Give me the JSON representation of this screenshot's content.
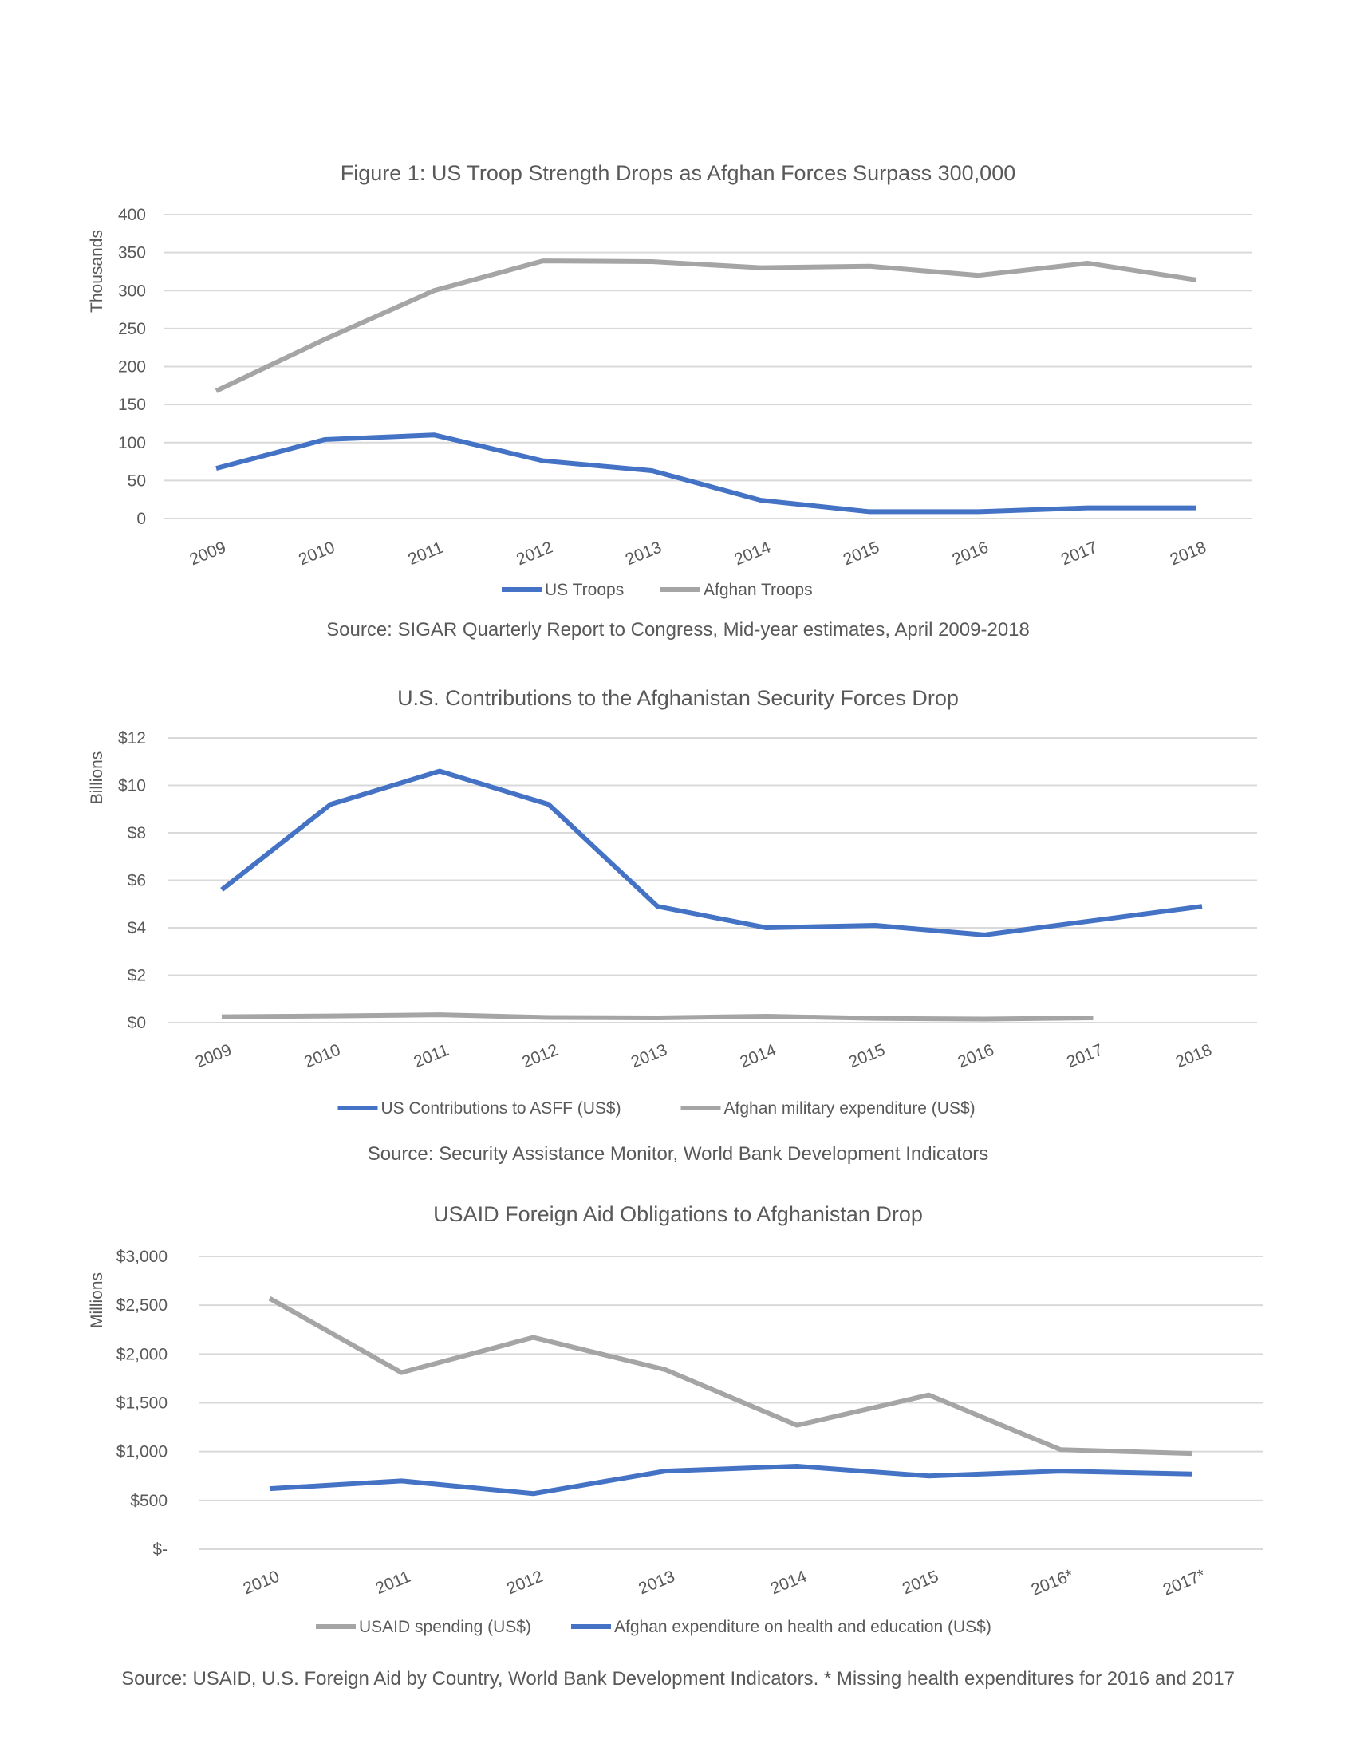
{
  "colors": {
    "blue": "#4472C4",
    "gray": "#A5A5A5",
    "grid": "#D9D9D9"
  },
  "chart_data": [
    {
      "type": "line",
      "title": "Figure 1: US Troop Strength Drops as Afghan Forces Surpass 300,000",
      "ylabel": "Thousands",
      "ylim": [
        0,
        400
      ],
      "yticks": [
        0,
        50,
        100,
        150,
        200,
        250,
        300,
        350,
        400
      ],
      "ytick_labels": [
        "0",
        "50",
        "100",
        "150",
        "200",
        "250",
        "300",
        "350",
        "400"
      ],
      "categories": [
        "2009",
        "2010",
        "2011",
        "2012",
        "2013",
        "2014",
        "2015",
        "2016",
        "2017",
        "2018"
      ],
      "grid": true,
      "legend_placement": "bottom",
      "series": [
        {
          "name": "US Troops",
          "color": "#4472C4",
          "values": [
            66,
            104,
            110,
            76,
            63,
            24,
            9,
            9,
            14,
            14
          ]
        },
        {
          "name": "Afghan Troops",
          "color": "#A5A5A5",
          "values": [
            168,
            236,
            300,
            339,
            338,
            330,
            332,
            320,
            336,
            314
          ]
        }
      ],
      "source": "Source: SIGAR Quarterly Report to Congress, Mid-year estimates, April 2009-2018"
    },
    {
      "type": "line",
      "title": "U.S. Contributions to the Afghanistan Security Forces Drop",
      "ylabel": "Billions",
      "ylim": [
        0,
        12
      ],
      "yticks": [
        0,
        2,
        4,
        6,
        8,
        10,
        12
      ],
      "ytick_labels": [
        "$0",
        "$2",
        "$4",
        "$6",
        "$8",
        "$10",
        "$12"
      ],
      "categories": [
        "2009",
        "2010",
        "2011",
        "2012",
        "2013",
        "2014",
        "2015",
        "2016",
        "2017",
        "2018"
      ],
      "grid": true,
      "legend_placement": "bottom",
      "series": [
        {
          "name": "US Contributions to ASFF (US$)",
          "color": "#4472C4",
          "values": [
            5.6,
            9.2,
            10.6,
            9.2,
            4.9,
            4.0,
            4.1,
            3.7,
            4.3,
            4.9
          ]
        },
        {
          "name": "Afghan military expenditure (US$)",
          "color": "#A5A5A5",
          "values": [
            0.25,
            0.28,
            0.33,
            0.22,
            0.2,
            0.27,
            0.18,
            0.15,
            0.2,
            null
          ]
        }
      ],
      "source": "Source: Security Assistance Monitor, World Bank Development Indicators"
    },
    {
      "type": "line",
      "title": "USAID Foreign Aid Obligations to Afghanistan Drop",
      "ylabel": "Millions",
      "ylim": [
        0,
        3000
      ],
      "yticks": [
        0,
        500,
        1000,
        1500,
        2000,
        2500,
        3000
      ],
      "ytick_labels": [
        "$-",
        "$500",
        "$1,000",
        "$1,500",
        "$2,000",
        "$2,500",
        "$3,000"
      ],
      "categories": [
        "2010",
        "2011",
        "2012",
        "2013",
        "2014",
        "2015",
        "2016*",
        "2017*"
      ],
      "grid": true,
      "legend_placement": "bottom",
      "series": [
        {
          "name": "USAID spending (US$)",
          "color": "#A5A5A5",
          "values": [
            2570,
            1810,
            2170,
            1840,
            1270,
            1580,
            1020,
            980
          ]
        },
        {
          "name": "Afghan expenditure on health and education (US$)",
          "color": "#4472C4",
          "values": [
            620,
            700,
            570,
            800,
            850,
            750,
            800,
            770
          ]
        }
      ],
      "source": "Source: USAID, U.S. Foreign Aid by Country, World Bank Development Indicators. * Missing health expenditures for 2016 and 2017"
    }
  ]
}
